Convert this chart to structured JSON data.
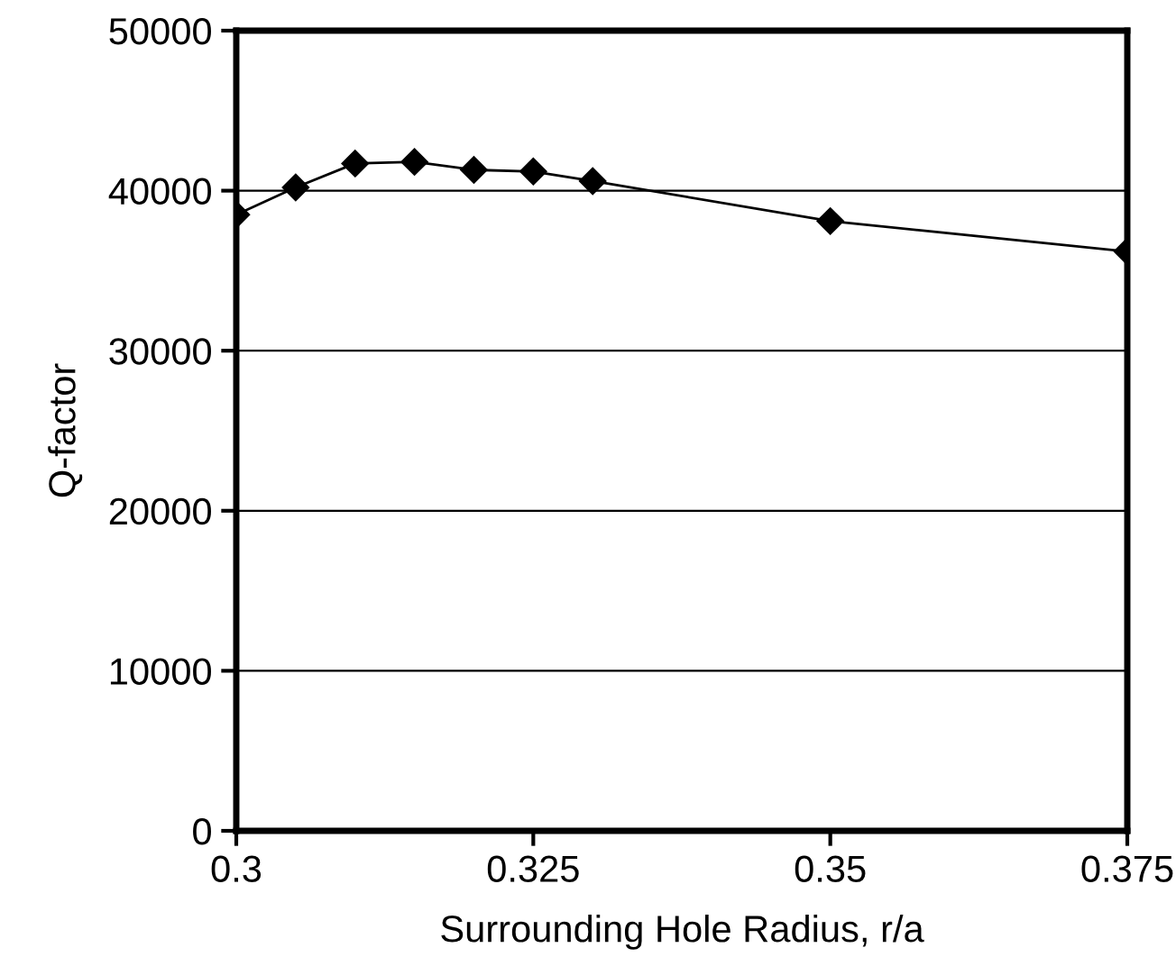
{
  "chart_data": {
    "type": "line",
    "xlabel": "Surrounding Hole Radius, r/a",
    "ylabel": "Q-factor",
    "x": [
      0.3,
      0.305,
      0.31,
      0.315,
      0.32,
      0.325,
      0.33,
      0.35,
      0.375
    ],
    "series": [
      {
        "color": "#000000",
        "values": [
          38500,
          40200,
          41700,
          41800,
          41300,
          41200,
          40600,
          38100,
          36200
        ]
      }
    ],
    "xlim": [
      0.3,
      0.375
    ],
    "xticks": [
      0.3,
      0.325,
      0.35,
      0.375
    ],
    "ylim": [
      0,
      50000
    ],
    "yticks": [
      0,
      10000,
      20000,
      30000,
      40000,
      50000
    ],
    "grid": "y",
    "marker": "diamond",
    "line_style": "solid"
  }
}
